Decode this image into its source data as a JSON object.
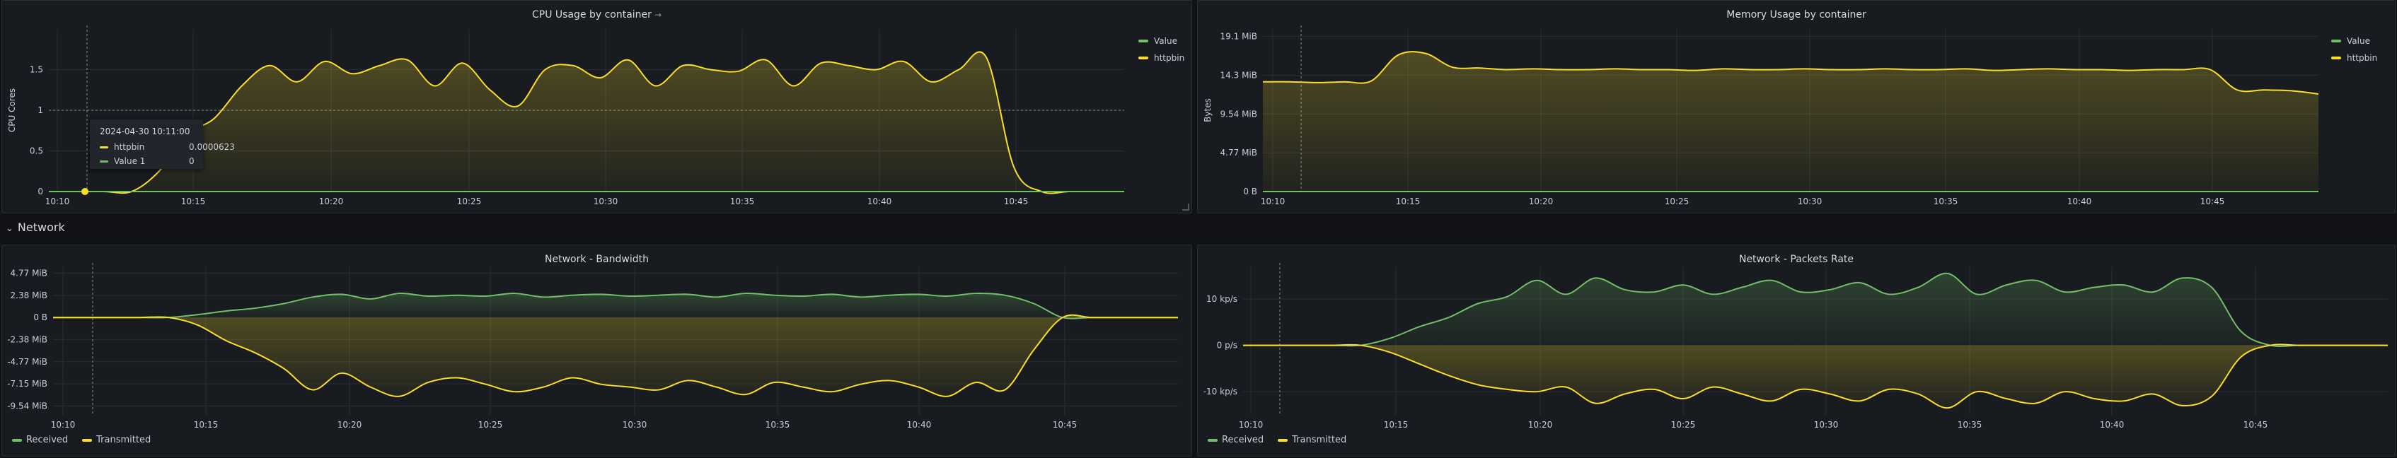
{
  "colors": {
    "green": "#73bf69",
    "yellow": "#fade2a",
    "grid": "#2a2d32",
    "tick": "#ccccdc"
  },
  "section": {
    "caret": "⌄",
    "label": "Network"
  },
  "cpu": {
    "title": "CPU Usage by container",
    "title_suffix": "→",
    "ylabel": "CPU Cores",
    "yticks": [
      "1.5",
      "1",
      "0.5",
      "0"
    ],
    "xticks": [
      "10:10",
      "10:15",
      "10:20",
      "10:25",
      "10:30",
      "10:35",
      "10:40",
      "10:45"
    ],
    "legend": [
      {
        "label": "Value",
        "color": "#73bf69"
      },
      {
        "label": "httpbin",
        "color": "#fade2a"
      }
    ],
    "tooltip": {
      "time": "2024-04-30 10:11:00",
      "rows": [
        {
          "label": "httpbin",
          "value": "0.0000623",
          "color": "#fade2a"
        },
        {
          "label": "Value 1",
          "value": "0",
          "color": "#73bf69"
        }
      ]
    }
  },
  "memory": {
    "title": "Memory Usage by container",
    "ylabel": "Bytes",
    "yticks": [
      "19.1 MiB",
      "14.3 MiB",
      "9.54 MiB",
      "4.77 MiB",
      "0 B"
    ],
    "xticks": [
      "10:10",
      "10:15",
      "10:20",
      "10:25",
      "10:30",
      "10:35",
      "10:40",
      "10:45"
    ],
    "legend": [
      {
        "label": "Value",
        "color": "#73bf69"
      },
      {
        "label": "httpbin",
        "color": "#fade2a"
      }
    ]
  },
  "bandwidth": {
    "title": "Network - Bandwidth",
    "yticks": [
      "4.77 MiB",
      "2.38 MiB",
      "0 B",
      "-2.38 MiB",
      "-4.77 MiB",
      "-7.15 MiB",
      "-9.54 MiB"
    ],
    "xticks": [
      "10:10",
      "10:15",
      "10:20",
      "10:25",
      "10:30",
      "10:35",
      "10:40",
      "10:45"
    ],
    "legend": [
      {
        "label": "Received",
        "color": "#73bf69"
      },
      {
        "label": "Transmitted",
        "color": "#fade2a"
      }
    ]
  },
  "packets": {
    "title": "Network - Packets Rate",
    "yticks": [
      "10 kp/s",
      "0 p/s",
      "-10 kp/s"
    ],
    "xticks": [
      "10:10",
      "10:15",
      "10:20",
      "10:25",
      "10:30",
      "10:35",
      "10:40",
      "10:45"
    ],
    "legend": [
      {
        "label": "Received",
        "color": "#73bf69"
      },
      {
        "label": "Transmitted",
        "color": "#fade2a"
      }
    ]
  },
  "chart_data": [
    {
      "type": "area",
      "title": "CPU Usage by container",
      "ylabel": "CPU Cores",
      "ylim": [
        0,
        2.0
      ],
      "x": [
        "10:10",
        "10:11",
        "10:12",
        "10:13",
        "10:14",
        "10:15",
        "10:16",
        "10:17",
        "10:18",
        "10:19",
        "10:20",
        "10:21",
        "10:22",
        "10:23",
        "10:24",
        "10:25",
        "10:26",
        "10:27",
        "10:28",
        "10:29",
        "10:30",
        "10:31",
        "10:32",
        "10:33",
        "10:34",
        "10:35",
        "10:36",
        "10:37",
        "10:38",
        "10:39",
        "10:40",
        "10:41",
        "10:42",
        "10:43",
        "10:44",
        "10:45",
        "10:46",
        "10:47",
        "10:48",
        "10:49"
      ],
      "series": [
        {
          "name": "httpbin",
          "values": [
            0,
            0,
            0,
            0,
            0.25,
            0.7,
            0.9,
            1.3,
            1.55,
            1.35,
            1.6,
            1.45,
            1.55,
            1.62,
            1.3,
            1.58,
            1.25,
            1.05,
            1.5,
            1.55,
            1.4,
            1.62,
            1.3,
            1.55,
            1.5,
            1.48,
            1.62,
            1.3,
            1.58,
            1.55,
            1.5,
            1.6,
            1.35,
            1.5,
            1.65,
            0.3,
            0,
            0,
            0,
            0
          ]
        },
        {
          "name": "Value",
          "values": [
            0,
            0,
            0,
            0,
            0,
            0,
            0,
            0,
            0,
            0,
            0,
            0,
            0,
            0,
            0,
            0,
            0,
            0,
            0,
            0,
            0,
            0,
            0,
            0,
            0,
            0,
            0,
            0,
            0,
            0,
            0,
            0,
            0,
            0,
            0,
            0,
            0,
            0,
            0,
            0
          ]
        }
      ]
    },
    {
      "type": "area",
      "title": "Memory Usage by container",
      "ylabel": "Bytes",
      "ylim": [
        0,
        20
      ],
      "x": [
        "10:10",
        "10:11",
        "10:12",
        "10:13",
        "10:14",
        "10:15",
        "10:16",
        "10:17",
        "10:18",
        "10:19",
        "10:20",
        "10:21",
        "10:22",
        "10:23",
        "10:24",
        "10:25",
        "10:26",
        "10:27",
        "10:28",
        "10:29",
        "10:30",
        "10:31",
        "10:32",
        "10:33",
        "10:34",
        "10:35",
        "10:36",
        "10:37",
        "10:38",
        "10:39",
        "10:40",
        "10:41",
        "10:42",
        "10:43",
        "10:44",
        "10:45",
        "10:46",
        "10:47",
        "10:48",
        "10:49"
      ],
      "series": [
        {
          "name": "httpbin",
          "values": [
            13.5,
            13.5,
            13.4,
            13.5,
            13.6,
            16.8,
            17.0,
            15.3,
            15.2,
            15.0,
            15.1,
            15.0,
            15.0,
            15.1,
            15.0,
            15.0,
            14.9,
            15.1,
            15.0,
            15.0,
            15.1,
            15.0,
            15.0,
            15.1,
            15.0,
            15.0,
            15.1,
            14.9,
            15.0,
            15.1,
            15.0,
            15.0,
            14.9,
            15.0,
            15.0,
            15.0,
            12.5,
            12.5,
            12.4,
            12.0
          ]
        },
        {
          "name": "Value",
          "values": [
            0,
            0,
            0,
            0,
            0,
            0,
            0,
            0,
            0,
            0,
            0,
            0,
            0,
            0,
            0,
            0,
            0,
            0,
            0,
            0,
            0,
            0,
            0,
            0,
            0,
            0,
            0,
            0,
            0,
            0,
            0,
            0,
            0,
            0,
            0,
            0,
            0,
            0,
            0,
            0
          ]
        }
      ]
    },
    {
      "type": "area",
      "title": "Network - Bandwidth",
      "ylim": [
        -10.5,
        5.5
      ],
      "x": [
        "10:10",
        "10:11",
        "10:12",
        "10:13",
        "10:14",
        "10:15",
        "10:16",
        "10:17",
        "10:18",
        "10:19",
        "10:20",
        "10:21",
        "10:22",
        "10:23",
        "10:24",
        "10:25",
        "10:26",
        "10:27",
        "10:28",
        "10:29",
        "10:30",
        "10:31",
        "10:32",
        "10:33",
        "10:34",
        "10:35",
        "10:36",
        "10:37",
        "10:38",
        "10:39",
        "10:40",
        "10:41",
        "10:42",
        "10:43",
        "10:44",
        "10:45",
        "10:46",
        "10:47",
        "10:48",
        "10:49"
      ],
      "series": [
        {
          "name": "Received",
          "values": [
            0,
            0,
            0,
            0,
            0,
            0.3,
            0.7,
            1.0,
            1.5,
            2.2,
            2.5,
            2.0,
            2.6,
            2.3,
            2.4,
            2.3,
            2.6,
            2.2,
            2.4,
            2.5,
            2.3,
            2.4,
            2.5,
            2.2,
            2.6,
            2.4,
            2.3,
            2.5,
            2.2,
            2.4,
            2.5,
            2.3,
            2.6,
            2.4,
            1.5,
            0,
            0,
            0,
            0,
            0
          ]
        },
        {
          "name": "Transmitted",
          "values": [
            0,
            0,
            0,
            0,
            0,
            -0.8,
            -2.5,
            -3.8,
            -5.5,
            -7.8,
            -6.0,
            -7.5,
            -8.5,
            -7.0,
            -6.5,
            -7.2,
            -8.0,
            -7.5,
            -6.5,
            -7.2,
            -7.5,
            -7.8,
            -6.8,
            -7.5,
            -8.3,
            -7.0,
            -7.5,
            -8.0,
            -7.2,
            -6.8,
            -7.5,
            -8.5,
            -7.0,
            -7.8,
            -3.5,
            0,
            0,
            0,
            0,
            0
          ]
        }
      ]
    },
    {
      "type": "area",
      "title": "Network - Packets Rate",
      "ylim": [
        -15,
        17
      ],
      "x": [
        "10:10",
        "10:11",
        "10:12",
        "10:13",
        "10:14",
        "10:15",
        "10:16",
        "10:17",
        "10:18",
        "10:19",
        "10:20",
        "10:21",
        "10:22",
        "10:23",
        "10:24",
        "10:25",
        "10:26",
        "10:27",
        "10:28",
        "10:29",
        "10:30",
        "10:31",
        "10:32",
        "10:33",
        "10:34",
        "10:35",
        "10:36",
        "10:37",
        "10:38",
        "10:39",
        "10:40",
        "10:41",
        "10:42",
        "10:43",
        "10:44",
        "10:45",
        "10:46",
        "10:47",
        "10:48",
        "10:49"
      ],
      "series": [
        {
          "name": "Received",
          "values": [
            0,
            0,
            0,
            0,
            0,
            1.5,
            4.0,
            6.0,
            9.0,
            10.5,
            14.0,
            11.0,
            14.5,
            12.0,
            11.5,
            13.0,
            11.0,
            12.5,
            14.0,
            11.5,
            12.0,
            13.5,
            11.0,
            12.5,
            15.5,
            11.0,
            13.0,
            14.0,
            11.5,
            12.5,
            13.0,
            11.5,
            14.5,
            12.5,
            3.0,
            0,
            0,
            0,
            0,
            0
          ]
        },
        {
          "name": "Transmitted",
          "values": [
            0,
            0,
            0,
            0,
            0,
            -1.5,
            -4.0,
            -6.5,
            -8.5,
            -9.5,
            -10.0,
            -9.0,
            -12.5,
            -10.5,
            -9.5,
            -11.5,
            -9.0,
            -10.5,
            -12.0,
            -9.5,
            -10.5,
            -12.0,
            -9.5,
            -10.5,
            -13.5,
            -10.0,
            -11.5,
            -12.5,
            -10.0,
            -11.5,
            -12.0,
            -10.5,
            -13.0,
            -11.0,
            -2.5,
            0,
            0,
            0,
            0,
            0
          ]
        }
      ]
    }
  ]
}
